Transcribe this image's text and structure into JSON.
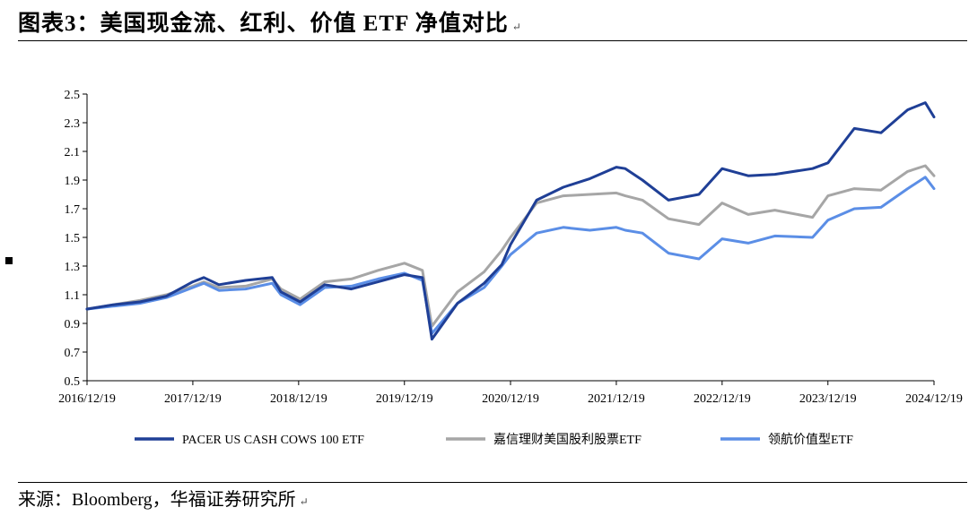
{
  "heading": {
    "title": "图表3：美国现金流、红利、价值 ETF 净值对比",
    "mark": "↵"
  },
  "source": {
    "text": "来源：Bloomberg，华福证券研究所",
    "mark": "↵"
  },
  "chart_data": {
    "type": "line",
    "title": "",
    "xlabel": "",
    "ylabel": "",
    "ylim": [
      0.5,
      2.5
    ],
    "yticks": [
      0.5,
      0.7,
      0.9,
      1.1,
      1.3,
      1.5,
      1.7,
      1.9,
      2.1,
      2.3,
      2.5
    ],
    "xlim": [
      "2016-12-19",
      "2024-12-19"
    ],
    "xticks": [
      "2016/12/19",
      "2017/12/19",
      "2018/12/19",
      "2019/12/19",
      "2020/12/19",
      "2021/12/19",
      "2022/12/19",
      "2023/12/19",
      "2024/12/19"
    ],
    "grid": false,
    "legend_position": "bottom",
    "x": [
      "2016-12-19",
      "2017-03-19",
      "2017-06-19",
      "2017-09-19",
      "2017-12-19",
      "2018-01-26",
      "2018-03-19",
      "2018-06-19",
      "2018-09-19",
      "2018-10-19",
      "2018-12-24",
      "2019-03-19",
      "2019-06-19",
      "2019-09-19",
      "2019-12-19",
      "2020-02-19",
      "2020-03-23",
      "2020-06-19",
      "2020-09-19",
      "2020-11-19",
      "2020-12-19",
      "2021-03-19",
      "2021-06-19",
      "2021-09-19",
      "2021-12-19",
      "2022-01-19",
      "2022-03-19",
      "2022-06-17",
      "2022-09-30",
      "2022-12-19",
      "2023-03-19",
      "2023-06-19",
      "2023-10-27",
      "2023-12-19",
      "2024-03-19",
      "2024-06-19",
      "2024-09-19",
      "2024-11-19",
      "2024-12-19"
    ],
    "series": [
      {
        "name": "PACER US CASH COWS 100 ETF",
        "color": "#1f3f96",
        "values": [
          1.0,
          1.03,
          1.05,
          1.09,
          1.19,
          1.22,
          1.17,
          1.2,
          1.22,
          1.12,
          1.05,
          1.17,
          1.14,
          1.19,
          1.24,
          1.22,
          0.79,
          1.04,
          1.18,
          1.31,
          1.45,
          1.76,
          1.85,
          1.91,
          1.99,
          1.98,
          1.9,
          1.76,
          1.8,
          1.98,
          1.93,
          1.94,
          1.98,
          2.02,
          2.26,
          2.23,
          2.39,
          2.44,
          2.34
        ]
      },
      {
        "name": "嘉信理财美国股利股票ETF",
        "color": "#a6a6a6",
        "values": [
          1.0,
          1.03,
          1.06,
          1.1,
          1.16,
          1.19,
          1.15,
          1.16,
          1.21,
          1.14,
          1.07,
          1.19,
          1.21,
          1.27,
          1.32,
          1.27,
          0.88,
          1.12,
          1.26,
          1.41,
          1.5,
          1.74,
          1.79,
          1.8,
          1.81,
          1.79,
          1.76,
          1.63,
          1.59,
          1.74,
          1.66,
          1.69,
          1.64,
          1.79,
          1.84,
          1.83,
          1.96,
          2.0,
          1.93
        ]
      },
      {
        "name": "领航价值型ETF",
        "color": "#5b8ee6",
        "values": [
          1.0,
          1.02,
          1.04,
          1.08,
          1.15,
          1.18,
          1.13,
          1.14,
          1.18,
          1.1,
          1.03,
          1.15,
          1.16,
          1.21,
          1.25,
          1.2,
          0.83,
          1.04,
          1.15,
          1.3,
          1.38,
          1.53,
          1.57,
          1.55,
          1.57,
          1.55,
          1.53,
          1.39,
          1.35,
          1.49,
          1.46,
          1.51,
          1.5,
          1.62,
          1.7,
          1.71,
          1.84,
          1.92,
          1.84
        ]
      }
    ]
  }
}
